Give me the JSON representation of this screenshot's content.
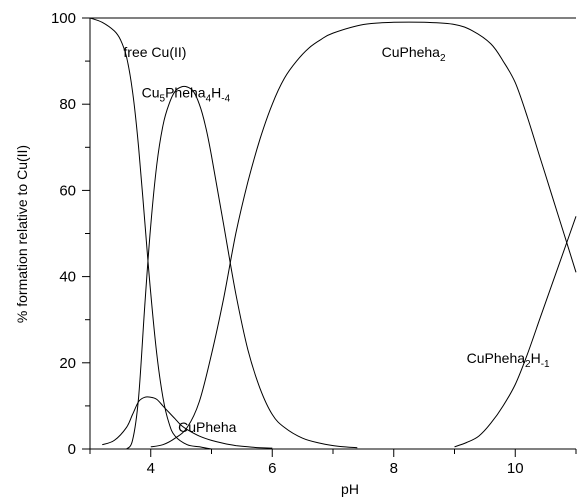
{
  "chart_data": {
    "type": "line",
    "xlabel": "pH",
    "ylabel": "% formation relative to Cu(II)",
    "xlim": [
      3.0,
      11.0
    ],
    "ylim": [
      0,
      100
    ],
    "x_ticks": [
      4,
      6,
      8,
      10
    ],
    "y_ticks": [
      0,
      20,
      40,
      60,
      80,
      100
    ],
    "grid": false,
    "series": [
      {
        "key": "free_cu",
        "label": "free Cu(II)",
        "label_parts": [
          {
            "t": "free Cu(II)",
            "sub": false
          }
        ],
        "x": [
          3.0,
          3.2,
          3.4,
          3.5,
          3.6,
          3.7,
          3.8,
          3.9,
          4.0,
          4.1,
          4.2,
          4.3,
          4.4,
          4.6,
          4.8,
          5.0
        ],
        "y": [
          100,
          99,
          97,
          95,
          91,
          83,
          70,
          53,
          36,
          22,
          12,
          6,
          3,
          1,
          0.5,
          0
        ]
      },
      {
        "key": "cu5",
        "label": "Cu5Pheha4H-4",
        "label_parts": [
          {
            "t": "Cu",
            "sub": false
          },
          {
            "t": "5",
            "sub": true
          },
          {
            "t": "Pheha",
            "sub": false
          },
          {
            "t": "4",
            "sub": true
          },
          {
            "t": "H",
            "sub": false
          },
          {
            "t": "-4",
            "sub": true
          }
        ],
        "x": [
          3.6,
          3.7,
          3.8,
          3.9,
          4.0,
          4.1,
          4.2,
          4.3,
          4.4,
          4.5,
          4.6,
          4.7,
          4.8,
          4.9,
          5.0,
          5.2,
          5.4,
          5.6,
          5.8,
          6.0,
          6.2,
          6.5,
          6.8,
          7.1,
          7.4
        ],
        "y": [
          0,
          2,
          12,
          33,
          52,
          66,
          75,
          80,
          83,
          84,
          84,
          83,
          80,
          75,
          68,
          52,
          36,
          23,
          14,
          8,
          5,
          2.5,
          1.3,
          0.6,
          0.3
        ]
      },
      {
        "key": "cupheha",
        "label": "CuPheha",
        "label_parts": [
          {
            "t": "CuPheha",
            "sub": false
          }
        ],
        "x": [
          3.2,
          3.4,
          3.6,
          3.7,
          3.8,
          3.9,
          4.0,
          4.1,
          4.2,
          4.3,
          4.4,
          4.5,
          4.6,
          4.8,
          5.0,
          5.2,
          5.4,
          5.6,
          5.8,
          6.0
        ],
        "y": [
          1,
          2,
          5,
          8,
          11,
          12,
          12,
          11.5,
          10,
          8.5,
          7,
          5.5,
          4.5,
          3,
          2,
          1.3,
          0.8,
          0.5,
          0.3,
          0.2
        ]
      },
      {
        "key": "cupheha2",
        "label": "CuPheha2",
        "label_parts": [
          {
            "t": "CuPheha",
            "sub": false
          },
          {
            "t": "2",
            "sub": true
          }
        ],
        "x": [
          4.0,
          4.2,
          4.4,
          4.6,
          4.8,
          5.0,
          5.2,
          5.4,
          5.6,
          5.8,
          6.0,
          6.2,
          6.4,
          6.6,
          6.8,
          7.0,
          7.5,
          8.0,
          8.5,
          9.0,
          9.3,
          9.6,
          9.8,
          10.0,
          10.2,
          10.4,
          10.6,
          10.8,
          11.0
        ],
        "y": [
          0.5,
          1,
          2.5,
          5,
          11,
          22,
          35,
          50,
          62,
          72,
          80,
          86,
          90,
          93,
          95,
          96.5,
          98.5,
          99,
          99,
          98.5,
          97,
          94,
          90,
          85,
          77,
          68,
          59,
          50,
          41
        ]
      },
      {
        "key": "cupheha2h",
        "label": "CuPheha2H-1",
        "label_parts": [
          {
            "t": "CuPheha",
            "sub": false
          },
          {
            "t": "2",
            "sub": true
          },
          {
            "t": "H",
            "sub": false
          },
          {
            "t": "-1",
            "sub": true
          }
        ],
        "x": [
          9.0,
          9.2,
          9.4,
          9.6,
          9.8,
          10.0,
          10.2,
          10.4,
          10.6,
          10.8,
          11.0
        ],
        "y": [
          0.5,
          1.5,
          3,
          6,
          10,
          15,
          22,
          30,
          38,
          46,
          54
        ]
      }
    ]
  }
}
